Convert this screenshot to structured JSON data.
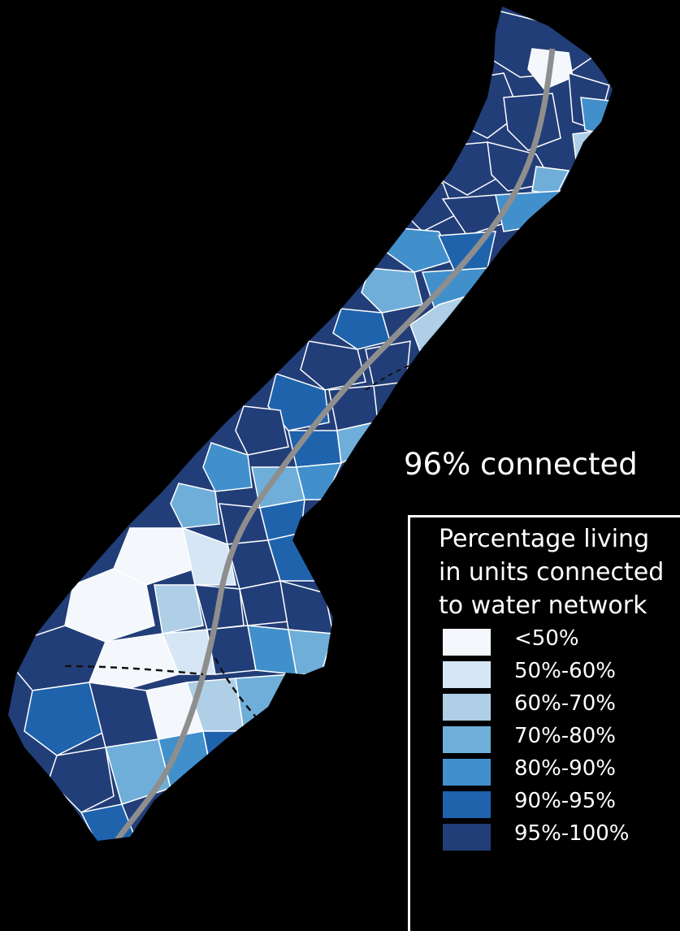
{
  "headline": "96% connected",
  "legend": {
    "title_lines": [
      "Percentage living",
      "in units connected",
      "to water network"
    ],
    "items": [
      {
        "label": "<50%",
        "color": "#f4f8fd"
      },
      {
        "label": "50%-60%",
        "color": "#d6e6f4"
      },
      {
        "label": "60%-70%",
        "color": "#aecfe6"
      },
      {
        "label": "70%-80%",
        "color": "#6faed9"
      },
      {
        "label": "80%-90%",
        "color": "#4190cc"
      },
      {
        "label": "90%-95%",
        "color": "#1f63ad"
      },
      {
        "label": "95%-100%",
        "color": "#223e78"
      }
    ]
  },
  "map": {
    "region_colors": [
      "#223e78",
      "#1f63ad",
      "#4190cc",
      "#6faed9",
      "#aecfe6",
      "#d6e6f4",
      "#f4f8fd"
    ],
    "boundary_color": "#ffffff",
    "road_color": "#8e8e8e",
    "border_dash_color": "#111111"
  }
}
